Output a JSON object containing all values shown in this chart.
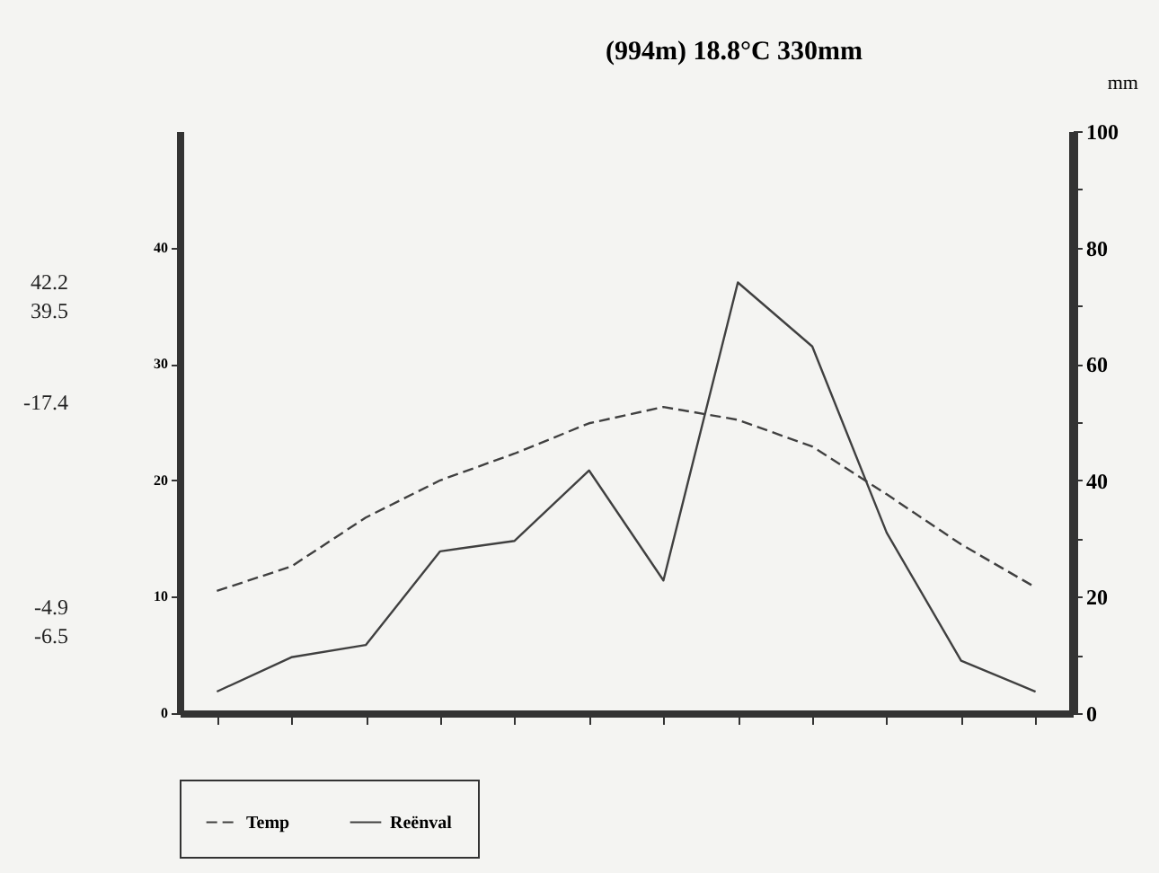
{
  "chart_data": {
    "type": "line",
    "title": "(994m)   18.8°C   330mm",
    "y2label": "mm",
    "categories": [
      null,
      null,
      null,
      null,
      null,
      null,
      null,
      null,
      null,
      null,
      null,
      null
    ],
    "series": [
      {
        "name": "Temp",
        "color": "#404040",
        "line_style": "dashed",
        "values": [
          10.5,
          12.6,
          16.8,
          20.0,
          22.3,
          24.9,
          26.3,
          25.2,
          22.9,
          18.8,
          14.5,
          10.8
        ]
      },
      {
        "name": "Reënval",
        "color": "#404040",
        "line_style": "solid",
        "axis": "y2",
        "values": [
          3.7,
          9.6,
          11.7,
          27.8,
          29.6,
          41.7,
          22.8,
          74,
          63,
          31,
          9,
          3.7
        ]
      }
    ],
    "ylim": [
      0,
      50
    ],
    "yticks": [
      0,
      10,
      20,
      30,
      40
    ],
    "y2lim": [
      0,
      100
    ],
    "y2ticks": [
      0,
      {
        "value": 10,
        "label": null
      },
      20,
      {
        "value": 30,
        "label": null
      },
      40,
      {
        "value": 50,
        "label": null
      },
      60,
      {
        "value": 70,
        "label": null
      },
      80,
      {
        "value": 90,
        "label": null
      },
      100
    ],
    "annotations": [
      "42.2",
      "39.5",
      "-17.4",
      "-4.9",
      "-6.5"
    ],
    "tick_labels": "y",
    "grid": false,
    "legend": "bottom",
    "marker": "none"
  }
}
